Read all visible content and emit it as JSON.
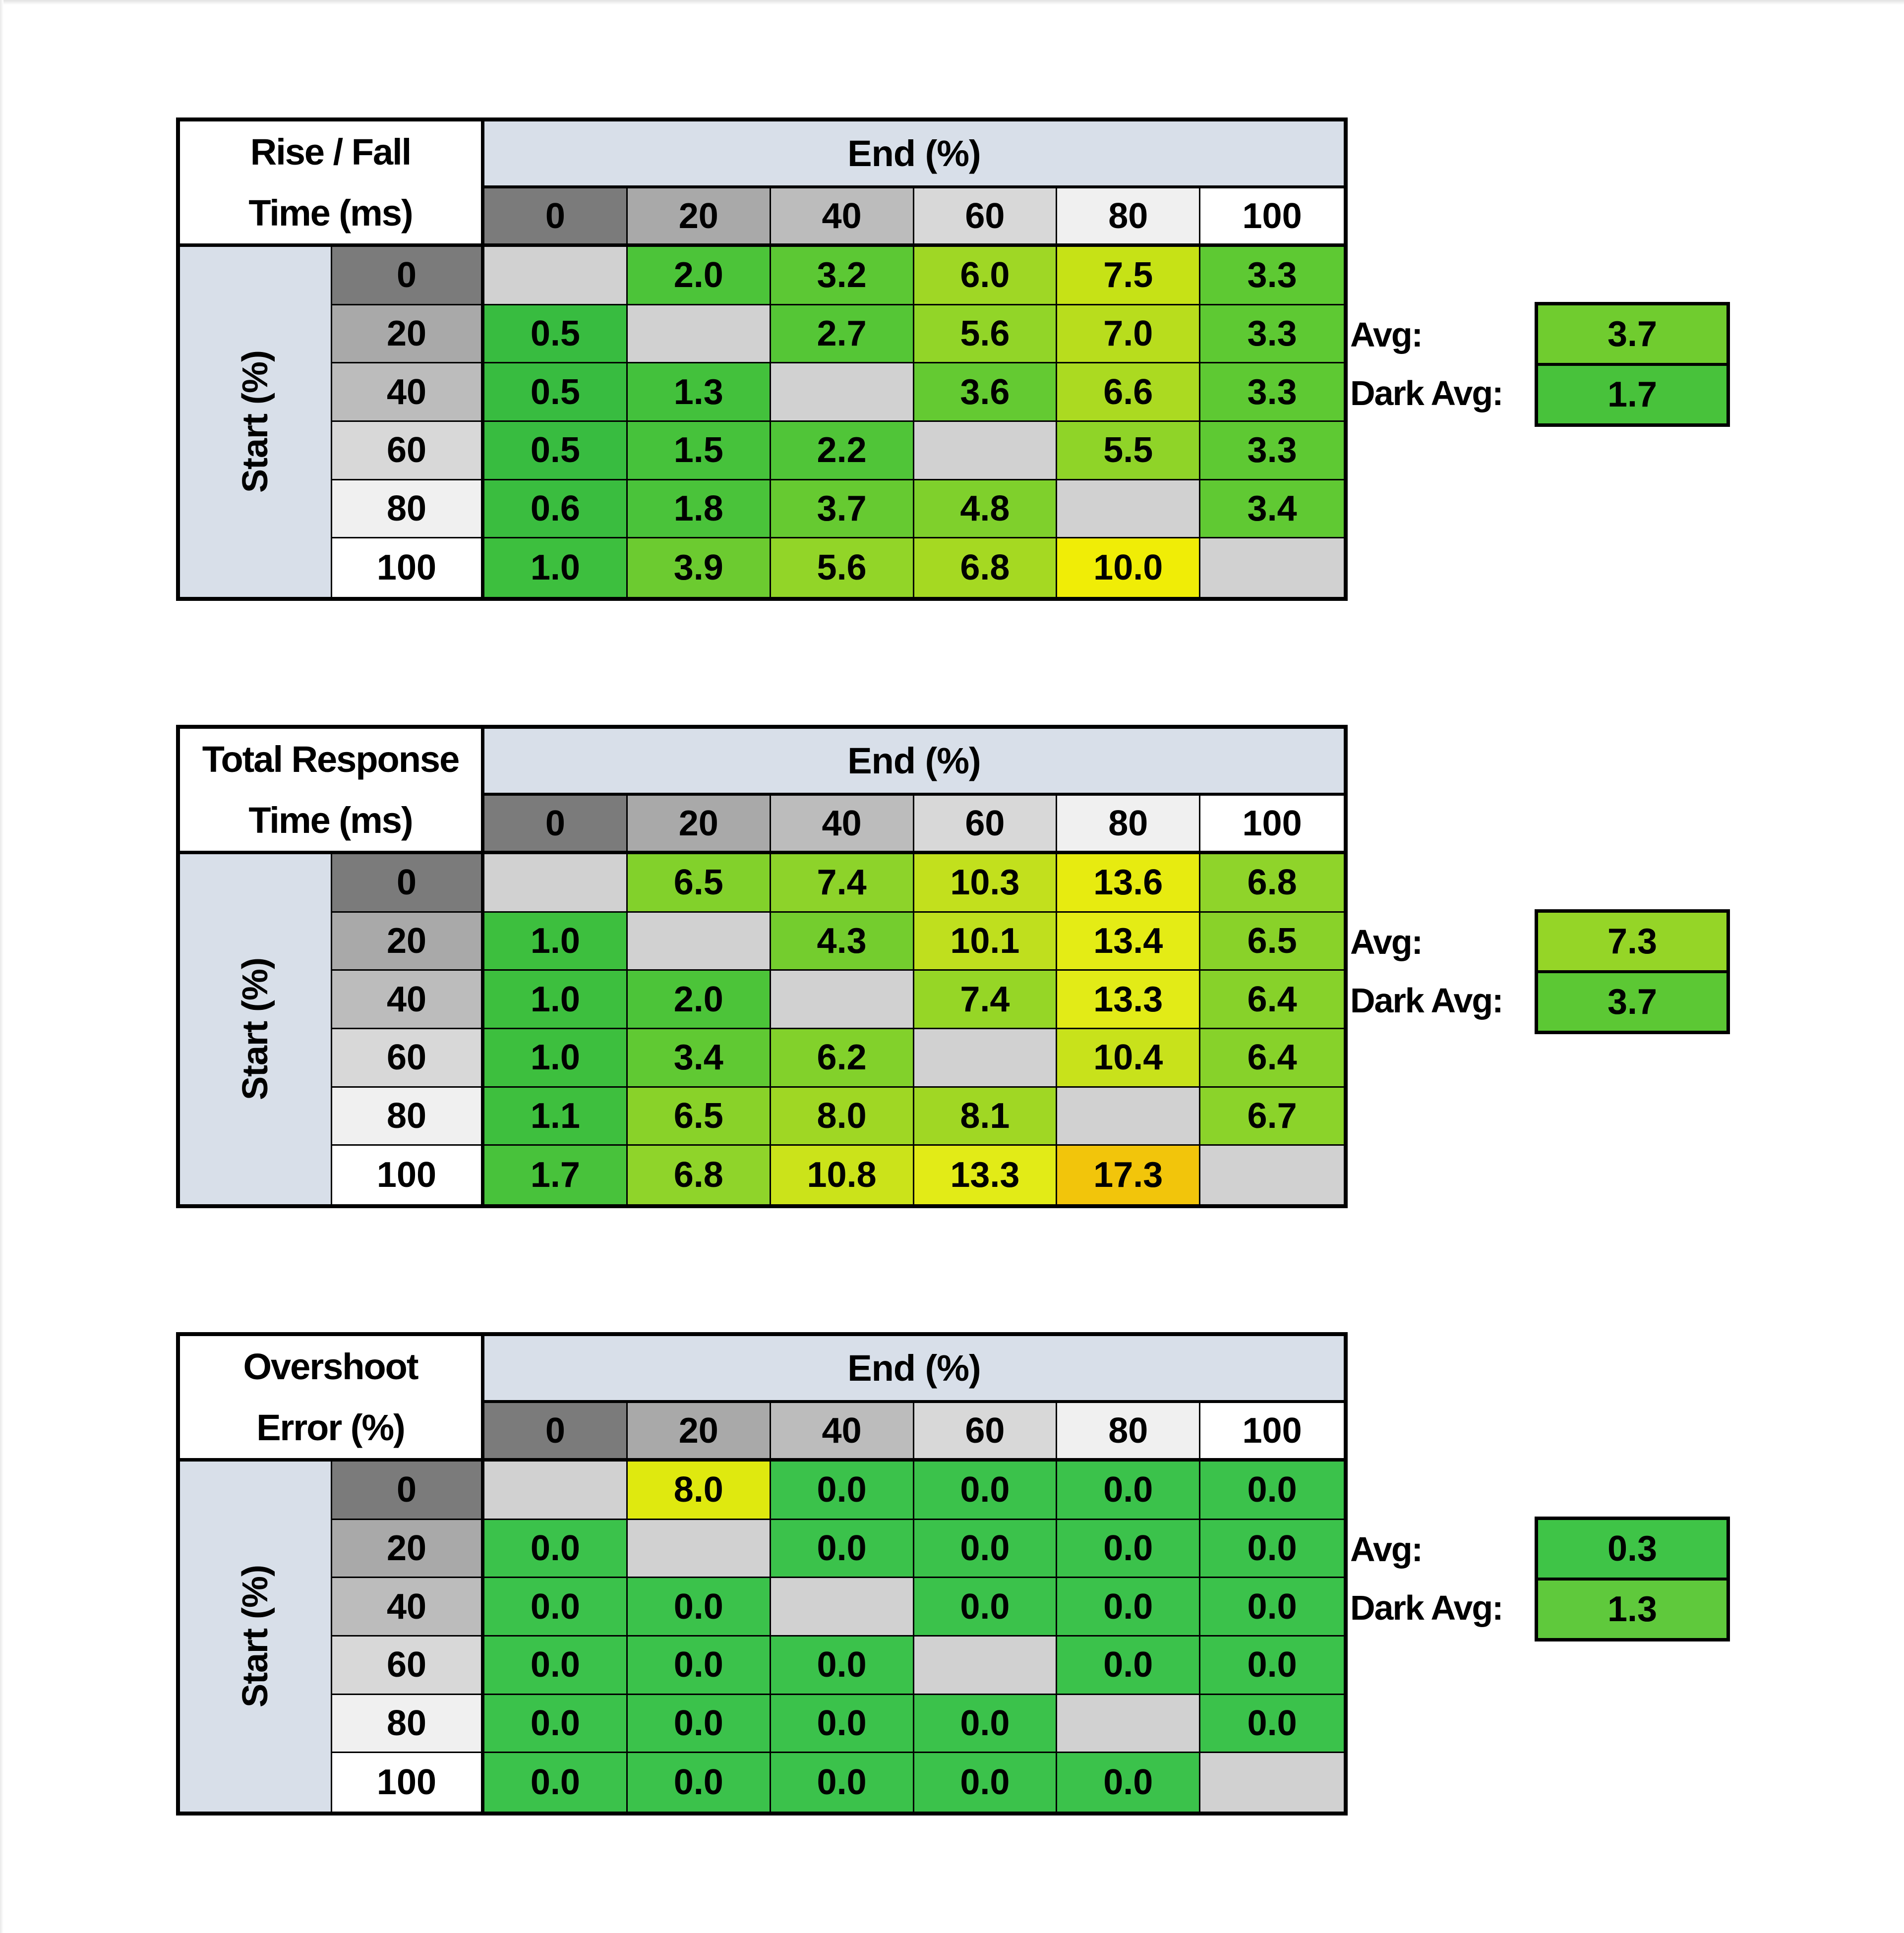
{
  "page": {
    "background": "#FFFFFF",
    "edge_shadow": "#E8E8E8"
  },
  "palette": {
    "table_border": "#000000",
    "band_blue": "#D8DFE9",
    "title_bg": "#FFFFFF",
    "diagonal_gray": "#D1D1D1",
    "header_grays": [
      "#7B7B7B",
      "#A9A9A9",
      "#BCBCBC",
      "#D8D8D8",
      "#F0F0F0",
      "#FFFFFF"
    ]
  },
  "labels": {
    "avg": "Avg:",
    "dark_avg": "Dark Avg:"
  },
  "axis": {
    "col_title": "End (%)",
    "row_title": "Start (%)",
    "ticks": [
      "0",
      "20",
      "40",
      "60",
      "80",
      "100"
    ]
  },
  "tables": [
    {
      "title_line1": "Rise / Fall",
      "title_line2": "Time (ms)"
    },
    {
      "title_line1": "Total Response",
      "title_line2": "Time (ms)"
    },
    {
      "title_line1": "Overshoot",
      "title_line2": "Error (%)"
    }
  ],
  "chart_data": [
    {
      "type": "heatmap",
      "title": "Rise / Fall Time (ms)",
      "x_label": "End (%)",
      "y_label": "Start (%)",
      "x": [
        0,
        20,
        40,
        60,
        80,
        100
      ],
      "y": [
        0,
        20,
        40,
        60,
        80,
        100
      ],
      "values": [
        [
          null,
          2.0,
          3.2,
          6.0,
          7.5,
          3.3
        ],
        [
          0.5,
          null,
          2.7,
          5.6,
          7.0,
          3.3
        ],
        [
          0.5,
          1.3,
          null,
          3.6,
          6.6,
          3.3
        ],
        [
          0.5,
          1.5,
          2.2,
          null,
          5.5,
          3.3
        ],
        [
          0.6,
          1.8,
          3.7,
          4.8,
          null,
          3.4
        ],
        [
          1.0,
          3.9,
          5.6,
          6.8,
          10.0,
          null
        ]
      ],
      "cell_colors": [
        [
          null,
          "#4CC439",
          "#5CC834",
          "#9FD725",
          "#C6E216",
          "#5EC933"
        ],
        [
          "#38BC40",
          null,
          "#55C636",
          "#92D528",
          "#B8DD1D",
          "#5EC933"
        ],
        [
          "#38BC40",
          "#43C13C",
          null,
          "#64CA32",
          "#ABDA21",
          "#5EC933"
        ],
        [
          "#38BC40",
          "#46C23B",
          "#50C538",
          null,
          "#8FD428",
          "#5EC933"
        ],
        [
          "#3ABD3F",
          "#4AC33A",
          "#66CA31",
          "#7FD02C",
          null,
          "#60C933"
        ],
        [
          "#3DBF3E",
          "#6CCB30",
          "#92D528",
          "#A5D922",
          "#F0ED06",
          null
        ]
      ],
      "avg": 3.7,
      "avg_color": "#70CC2F",
      "dark_avg": 1.7,
      "dark_avg_color": "#48C23B"
    },
    {
      "type": "heatmap",
      "title": "Total Response Time (ms)",
      "x_label": "End (%)",
      "y_label": "Start (%)",
      "x": [
        0,
        20,
        40,
        60,
        80,
        100
      ],
      "y": [
        0,
        20,
        40,
        60,
        80,
        100
      ],
      "values": [
        [
          null,
          6.5,
          7.4,
          10.3,
          13.6,
          6.8
        ],
        [
          1.0,
          null,
          4.3,
          10.1,
          13.4,
          6.5
        ],
        [
          1.0,
          2.0,
          null,
          7.4,
          13.3,
          6.4
        ],
        [
          1.0,
          3.4,
          6.2,
          null,
          10.4,
          6.4
        ],
        [
          1.1,
          6.5,
          8.0,
          8.1,
          null,
          6.7
        ],
        [
          1.7,
          6.8,
          10.8,
          13.3,
          17.3,
          null
        ]
      ],
      "cell_colors": [
        [
          null,
          "#82D12B",
          "#8DD32A",
          "#C2E01D",
          "#E7EB10",
          "#8FD42A"
        ],
        [
          "#3DBF3E",
          null,
          "#74CD2E",
          "#BFDF1E",
          "#E4EC15",
          "#89D229"
        ],
        [
          "#3DBF3E",
          "#4CC439",
          null,
          "#96D626",
          "#E2EB17",
          "#87D22A"
        ],
        [
          "#3DBF3E",
          "#60C933",
          "#82D12B",
          null,
          "#C8E21B",
          "#87D22A"
        ],
        [
          "#3EBF3E",
          "#89D229",
          "#9FD724",
          "#A0D724",
          null,
          "#8BD32A"
        ],
        [
          "#48C23B",
          "#8FD42A",
          "#CBE31A",
          "#E2EB17",
          "#F2C50B",
          null
        ]
      ],
      "avg": 7.3,
      "avg_color": "#95D527",
      "dark_avg": 3.7,
      "dark_avg_color": "#5CC834"
    },
    {
      "type": "heatmap",
      "title": "Overshoot Error (%)",
      "x_label": "End (%)",
      "y_label": "Start (%)",
      "x": [
        0,
        20,
        40,
        60,
        80,
        100
      ],
      "y": [
        0,
        20,
        40,
        60,
        80,
        100
      ],
      "values": [
        [
          null,
          8.0,
          0.0,
          0.0,
          0.0,
          0.0
        ],
        [
          0.0,
          null,
          0.0,
          0.0,
          0.0,
          0.0
        ],
        [
          0.0,
          0.0,
          null,
          0.0,
          0.0,
          0.0
        ],
        [
          0.0,
          0.0,
          0.0,
          null,
          0.0,
          0.0
        ],
        [
          0.0,
          0.0,
          0.0,
          0.0,
          null,
          0.0
        ],
        [
          0.0,
          0.0,
          0.0,
          0.0,
          0.0,
          null
        ]
      ],
      "cell_colors": [
        [
          null,
          "#DFE90F",
          "#3BC24B",
          "#3BC24B",
          "#3BC24B",
          "#3BC24B"
        ],
        [
          "#3BC24B",
          null,
          "#3BC24B",
          "#3BC24B",
          "#3BC24B",
          "#3BC24B"
        ],
        [
          "#3BC24B",
          "#3BC24B",
          null,
          "#3BC24B",
          "#3BC24B",
          "#3BC24B"
        ],
        [
          "#3BC24B",
          "#3BC24B",
          "#3BC24B",
          null,
          "#3BC24B",
          "#3BC24B"
        ],
        [
          "#3BC24B",
          "#3BC24B",
          "#3BC24B",
          "#3BC24B",
          null,
          "#3BC24B"
        ],
        [
          "#3BC24B",
          "#3BC24B",
          "#3BC24B",
          "#3BC24B",
          "#3BC24B",
          null
        ]
      ],
      "avg": 0.3,
      "avg_color": "#3FC447",
      "dark_avg": 1.3,
      "dark_avg_color": "#5FC93C"
    }
  ]
}
